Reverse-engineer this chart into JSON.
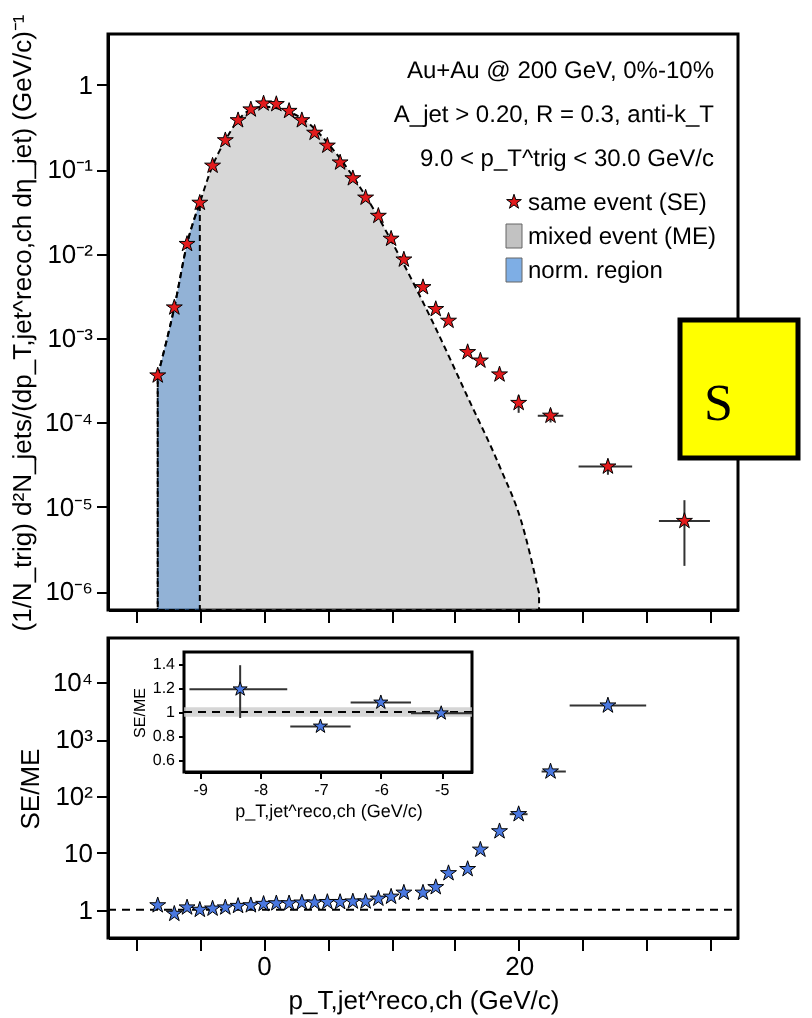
{
  "chart_data": [
    {
      "type": "scatter",
      "ylabel": "(1/N_trig) d²N_jets/(dp_T,jet^reco,ch dη_jet)  (GeV/c)⁻¹",
      "log": "y",
      "legend": "top right",
      "tick_labels": "y",
      "xlim": [
        -12.2,
        37.2
      ],
      "ylim": [
        6e-07,
        4
      ],
      "xticks": [
        {
          "value": -10,
          "label": null
        },
        {
          "value": -5,
          "label": null
        },
        {
          "value": 0,
          "label": null
        },
        {
          "value": 5,
          "label": null
        },
        {
          "value": 10,
          "label": null
        },
        {
          "value": 15,
          "label": null
        },
        {
          "value": 20,
          "label": null
        },
        {
          "value": 25,
          "label": null
        },
        {
          "value": 30,
          "label": null
        },
        {
          "value": 35,
          "label": null
        }
      ],
      "yticks": [
        {
          "value": 1e-06,
          "label": "10⁻⁶"
        },
        {
          "value": 1e-05,
          "label": "10⁻⁵"
        },
        {
          "value": 0.0001,
          "label": "10⁻⁴"
        },
        {
          "value": 0.001,
          "label": "10⁻³"
        },
        {
          "value": 0.01,
          "label": "10⁻²"
        },
        {
          "value": 0.1,
          "label": "10⁻¹"
        },
        1
      ],
      "annotations": [
        "Au+Au @ 200 GeV, 0%-10%",
        "A_jet > 0.20, R = 0.3, anti-k_T",
        "9.0 < p_T^trig < 30.0 GeV/c",
        "S"
      ],
      "series": [
        {
          "name": "mixed event (ME)",
          "type": "area",
          "color": "#9a9a9a",
          "x": [
            -8.3,
            -7,
            -6,
            -5,
            -4,
            -3,
            -2,
            -1,
            0,
            3,
            5.6,
            8.2,
            10.8,
            13.4,
            16,
            18.6,
            20.2,
            21.6
          ],
          "values": [
            0.00036,
            0.0023,
            0.013,
            0.04,
            0.11,
            0.22,
            0.38,
            0.51,
            0.55,
            0.4,
            0.16,
            0.043,
            0.0085,
            0.0014,
            0.0002,
            2.8e-05,
            6.8e-06,
            9.5e-07
          ]
        },
        {
          "name": "norm. region",
          "type": "area",
          "color": "#2a7ad5",
          "x": [
            -8.3,
            -7,
            -6,
            -5
          ],
          "values": [
            0.00036,
            0.0023,
            0.013,
            0.04
          ]
        },
        {
          "name": "same event (SE)",
          "marker": "star",
          "color": "#e31a1c",
          "x": [
            -8.3,
            -7,
            -6,
            -5,
            -4,
            -3,
            -2,
            -1,
            0,
            1,
            2,
            3,
            4,
            5,
            6,
            7,
            8,
            9,
            10,
            11,
            12.5,
            13.5,
            14.5,
            16,
            17,
            18.5,
            20,
            22.5,
            27,
            33
          ],
          "values": [
            0.00036,
            0.0023,
            0.013,
            0.04,
            0.11,
            0.22,
            0.38,
            0.51,
            0.6,
            0.59,
            0.49,
            0.38,
            0.27,
            0.19,
            0.12,
            0.078,
            0.046,
            0.028,
            0.015,
            0.0085,
            0.004,
            0.0022,
            0.0016,
            0.00068,
            0.00054,
            0.00037,
            0.00017,
            0.00012,
            3e-05,
            6.8e-06
          ],
          "errors": [
            null,
            null,
            null,
            null,
            null,
            null,
            null,
            null,
            null,
            null,
            null,
            null,
            null,
            null,
            null,
            null,
            null,
            null,
            null,
            null,
            null,
            null,
            null,
            null,
            null,
            null,
            [
              0.00013,
              0.00021
            ],
            [
              0.0001,
              0.000145
            ],
            [
              2.4e-05,
              3.6e-05
            ],
            [
              2e-06,
              1.2e-05
            ]
          ],
          "xerrors": [
            null,
            null,
            null,
            null,
            null,
            null,
            null,
            null,
            null,
            null,
            null,
            null,
            null,
            null,
            null,
            null,
            null,
            null,
            null,
            null,
            null,
            null,
            null,
            null,
            null,
            null,
            null,
            [
              21.5,
              23.5
            ],
            [
              24.7,
              28.9
            ],
            [
              31,
              35
            ]
          ]
        }
      ]
    },
    {
      "type": "scatter",
      "ylabel": "SE/ME",
      "xlabel": "p_T,jet^reco,ch  (GeV/c)",
      "log": "y",
      "marker": "star",
      "xlim": [
        -12.2,
        37.2
      ],
      "ylim": [
        0.32,
        60000.0
      ],
      "xticks": [
        {
          "value": -10,
          "label": null
        },
        {
          "value": -5,
          "label": null
        },
        0,
        {
          "value": 5,
          "label": null
        },
        {
          "value": 10,
          "label": null
        },
        {
          "value": 15,
          "label": null
        },
        20,
        {
          "value": 25,
          "label": null
        },
        {
          "value": 30,
          "label": null
        },
        {
          "value": 35,
          "label": null
        }
      ],
      "yticks": [
        1,
        10,
        {
          "value": 100,
          "label": "10²"
        },
        {
          "value": 1000,
          "label": "10³"
        },
        {
          "value": 10000,
          "label": "10⁴"
        }
      ],
      "ref_lines": [
        {
          "axis": "y",
          "value": 1,
          "line_style": "dashed",
          "color": "#000000"
        }
      ],
      "series": [
        {
          "color": "#4a78e0",
          "x": [
            -8.3,
            -7,
            -6,
            -5,
            -4,
            -3,
            -2,
            -1,
            0,
            1,
            2,
            3,
            4,
            5,
            6,
            7,
            8,
            9,
            10,
            11,
            12.5,
            13.5,
            14.5,
            16,
            17,
            18.5,
            20,
            22.5,
            27
          ],
          "values": [
            1.2,
            0.85,
            1.1,
            1.0,
            1.05,
            1.1,
            1.17,
            1.2,
            1.27,
            1.3,
            1.3,
            1.34,
            1.34,
            1.37,
            1.37,
            1.4,
            1.4,
            1.57,
            1.7,
            2.0,
            2.0,
            2.5,
            4.4,
            5.2,
            11.4,
            24,
            48,
            270,
            3900
          ],
          "xerrors": [
            null,
            null,
            null,
            null,
            null,
            null,
            null,
            null,
            null,
            null,
            null,
            null,
            null,
            null,
            null,
            null,
            null,
            null,
            null,
            null,
            null,
            null,
            null,
            null,
            null,
            null,
            [
              19.3,
              20.7
            ],
            [
              21.8,
              23.7
            ],
            [
              24,
              30
            ]
          ]
        }
      ]
    },
    {
      "type": "scatter",
      "ylabel": "SE/ME",
      "xlabel": "p_T,jet^reco,ch  (GeV/c)",
      "marker": "star",
      "xlim": [
        -9.26,
        -4.49
      ],
      "ylim": [
        0.5,
        1.5
      ],
      "xticks": [
        -9,
        -8,
        -7,
        -6,
        -5
      ],
      "yticks": [
        0.6,
        0.8,
        1,
        1.2,
        1.4
      ],
      "ref_lines": [
        {
          "axis": "y",
          "value": 1,
          "line_style": "dashed",
          "color": "#000000"
        }
      ],
      "bands": [
        {
          "axis": "y",
          "from": 0.96,
          "to": 1.04,
          "color": "#cccccc"
        }
      ],
      "series": [
        {
          "color": "#4a78e0",
          "x": [
            -8.33,
            -7,
            -6,
            -5
          ],
          "values": [
            1.19,
            0.88,
            1.08,
            0.99
          ],
          "errors": [
            [
              0.95,
              1.39
            ],
            null,
            null,
            null
          ],
          "xerrors": [
            [
              -9.17,
              -7.55
            ],
            [
              -7.5,
              -6.5
            ],
            [
              -6.5,
              -5.5
            ],
            [
              -5.5,
              -4.49
            ]
          ]
        }
      ]
    }
  ]
}
